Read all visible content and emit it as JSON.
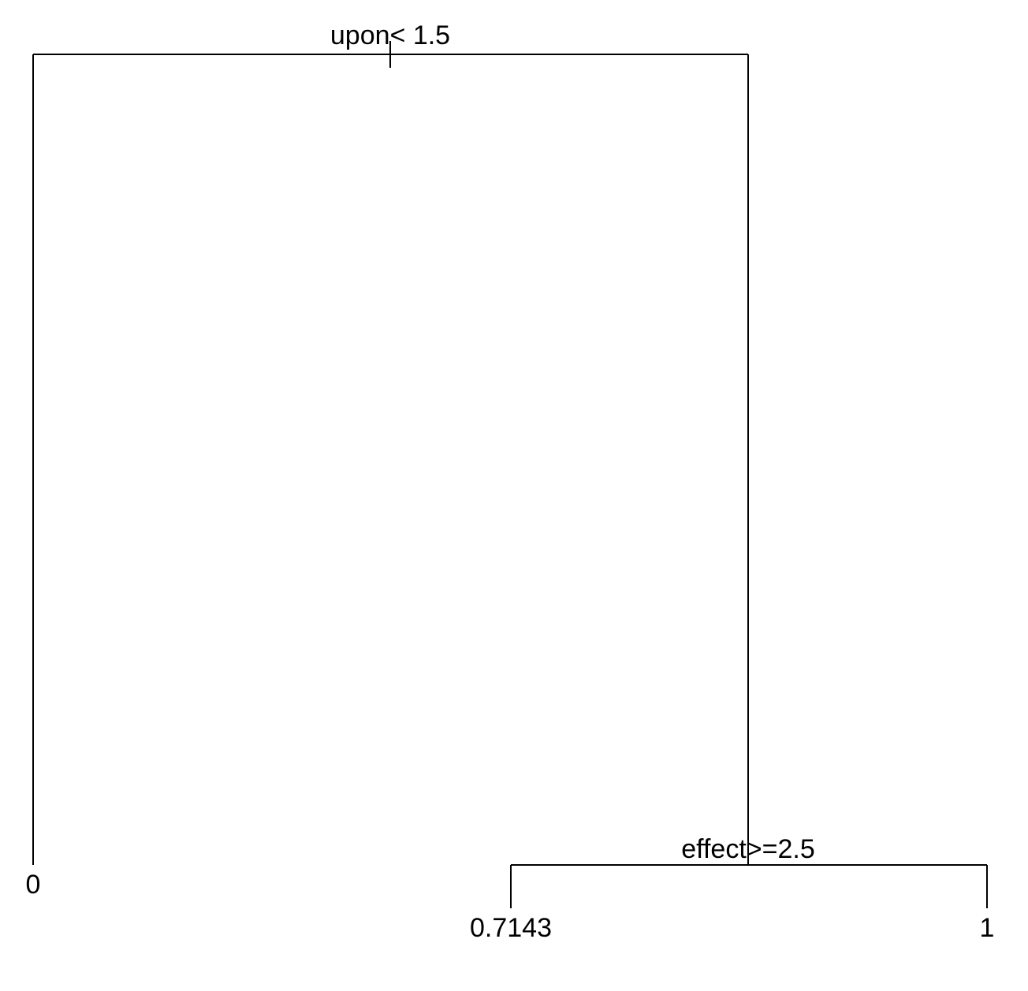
{
  "tree": {
    "root": {
      "split_label": "upon< 1.5"
    },
    "right_node": {
      "split_label": "effect>=2.5"
    },
    "leaves": [
      {
        "value": "0"
      },
      {
        "value": "0.7143"
      },
      {
        "value": "1"
      }
    ]
  },
  "colors": {
    "line": "#000000",
    "text": "#000000",
    "background": "#ffffff"
  }
}
